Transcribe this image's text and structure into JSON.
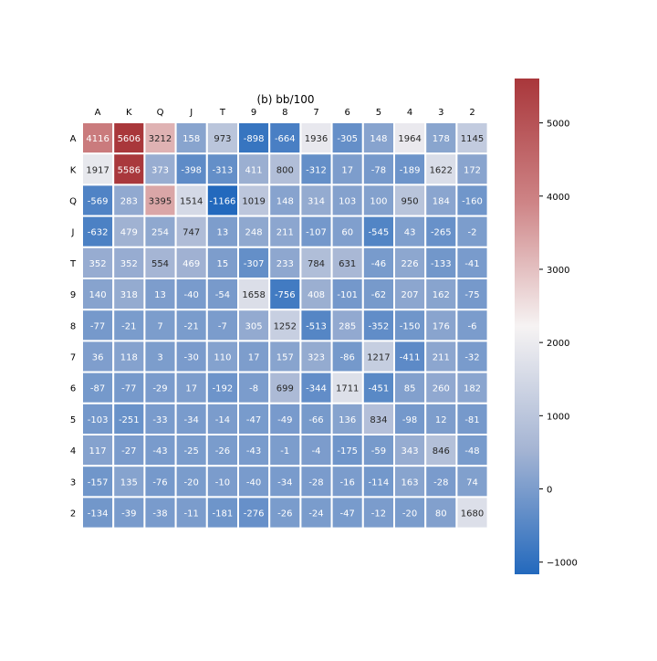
{
  "chart_data": {
    "type": "heatmap",
    "title": "(b) bb/100",
    "xlabel": "",
    "ylabel": "",
    "x_labels": [
      "A",
      "K",
      "Q",
      "J",
      "T",
      "9",
      "8",
      "7",
      "6",
      "5",
      "4",
      "3",
      "2"
    ],
    "y_labels": [
      "A",
      "K",
      "Q",
      "J",
      "T",
      "9",
      "8",
      "7",
      "6",
      "5",
      "4",
      "3",
      "2"
    ],
    "values": [
      [
        4116,
        5606,
        3212,
        158,
        973,
        -898,
        -664,
        1936,
        -305,
        148,
        1964,
        178,
        1145
      ],
      [
        1917,
        5586,
        373,
        -398,
        -313,
        411,
        800,
        -312,
        17,
        -78,
        -189,
        1622,
        172
      ],
      [
        -569,
        283,
        3395,
        1514,
        -1166,
        1019,
        148,
        314,
        103,
        100,
        950,
        184,
        -160
      ],
      [
        -632,
        479,
        254,
        747,
        13,
        248,
        211,
        -107,
        60,
        -545,
        43,
        -265,
        -2
      ],
      [
        352,
        352,
        554,
        469,
        15,
        -307,
        233,
        784,
        631,
        -46,
        226,
        -133,
        -41
      ],
      [
        140,
        318,
        13,
        -40,
        -54,
        1658,
        -756,
        408,
        -101,
        -62,
        207,
        162,
        -75
      ],
      [
        -77,
        -21,
        7,
        -21,
        -7,
        305,
        1252,
        -513,
        285,
        -352,
        -150,
        176,
        -6
      ],
      [
        36,
        118,
        3,
        -30,
        110,
        17,
        157,
        323,
        -86,
        1217,
        -411,
        211,
        -32
      ],
      [
        -87,
        -77,
        -29,
        17,
        -192,
        -8,
        699,
        -344,
        1711,
        -451,
        85,
        260,
        182
      ],
      [
        -103,
        -251,
        -33,
        -34,
        -14,
        -47,
        -49,
        -66,
        136,
        834,
        -98,
        12,
        -81
      ],
      [
        117,
        -27,
        -43,
        -25,
        -26,
        -43,
        -1,
        -4,
        -175,
        -59,
        343,
        846,
        -48
      ],
      [
        -157,
        135,
        -76,
        -20,
        -10,
        -40,
        -34,
        -28,
        -16,
        -114,
        163,
        -28,
        74
      ],
      [
        -134,
        -39,
        -38,
        -11,
        -181,
        -276,
        -26,
        -24,
        -47,
        -12,
        -20,
        80,
        1680
      ]
    ],
    "colorbar": {
      "colormap": "vlag",
      "vmin": -1166,
      "vmax": 5606,
      "ticks": [
        -1000,
        0,
        1000,
        2000,
        3000,
        4000,
        5000
      ],
      "tick_labels": [
        "−1000",
        "0",
        "1000",
        "2000",
        "3000",
        "4000",
        "5000"
      ]
    },
    "cell_separators": "white",
    "grid": false
  }
}
